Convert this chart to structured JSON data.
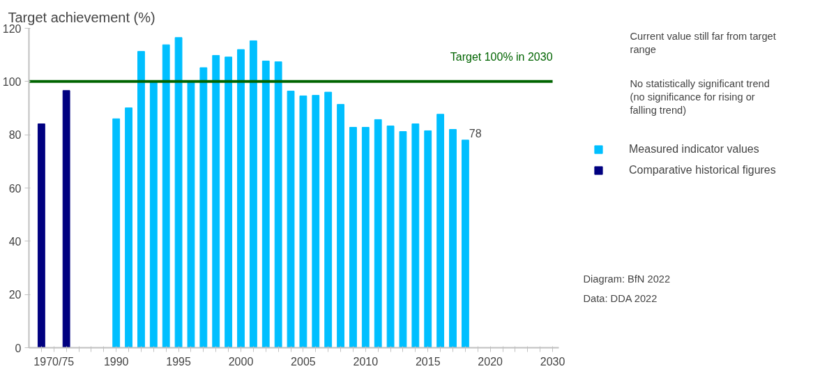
{
  "chart_data": {
    "type": "bar",
    "ylabel": "Target achievement (%)",
    "categories": [
      null,
      "1970/75",
      null,
      null,
      null,
      null,
      "1990",
      null,
      null,
      null,
      null,
      "1995",
      null,
      null,
      null,
      null,
      "2000",
      null,
      null,
      null,
      null,
      "2005",
      null,
      null,
      null,
      null,
      "2010",
      null,
      null,
      null,
      null,
      "2015",
      null,
      null,
      null,
      null,
      "2020",
      null,
      null,
      null,
      null,
      "2030"
    ],
    "series": [
      {
        "name": "Measured indicator values",
        "color": "#00bfff",
        "values": [
          null,
          null,
          null,
          null,
          null,
          null,
          86.0,
          90.1,
          111.3,
          100.0,
          113.8,
          116.5,
          100.0,
          105.2,
          109.8,
          109.2,
          112.0,
          115.3,
          107.7,
          107.4,
          96.4,
          94.6,
          94.8,
          96.0,
          91.4,
          82.8,
          82.8,
          85.7,
          83.3,
          81.2,
          84.1,
          81.5,
          87.7,
          82.0,
          78,
          null,
          null,
          null,
          null,
          null,
          null,
          null
        ],
        "value_labels": [
          null,
          null,
          null,
          null,
          null,
          null,
          null,
          null,
          null,
          null,
          null,
          null,
          null,
          null,
          null,
          null,
          null,
          null,
          null,
          null,
          null,
          null,
          null,
          null,
          null,
          null,
          null,
          null,
          null,
          null,
          null,
          null,
          null,
          null,
          "78",
          null,
          null,
          null,
          null,
          null,
          null,
          null
        ]
      },
      {
        "name": "Comparative historical figures",
        "color": "#000080",
        "values": [
          84.1,
          null,
          96.6,
          null,
          null,
          null,
          null,
          null,
          null,
          null,
          null,
          null,
          null,
          null,
          null,
          null,
          null,
          null,
          null,
          null,
          null,
          null,
          null,
          null,
          null,
          null,
          null,
          null,
          null,
          null,
          null,
          null,
          null,
          null,
          null,
          null,
          null,
          null,
          null,
          null,
          null,
          null
        ]
      }
    ],
    "ylim": [
      0,
      120
    ],
    "yticks": [
      0,
      20,
      40,
      60,
      80,
      100,
      120
    ],
    "ref_lines": [
      {
        "axis": "y",
        "value": 100,
        "label": "Target 100% in 2030",
        "color": "#006400"
      }
    ],
    "legend": "right",
    "grid": false,
    "annotations": [
      "Current value still far from target range",
      "No statistically significant trend (no significance for rising or falling trend)",
      "Diagram:  BfN 2022",
      "Data:        DDA 2022"
    ]
  }
}
